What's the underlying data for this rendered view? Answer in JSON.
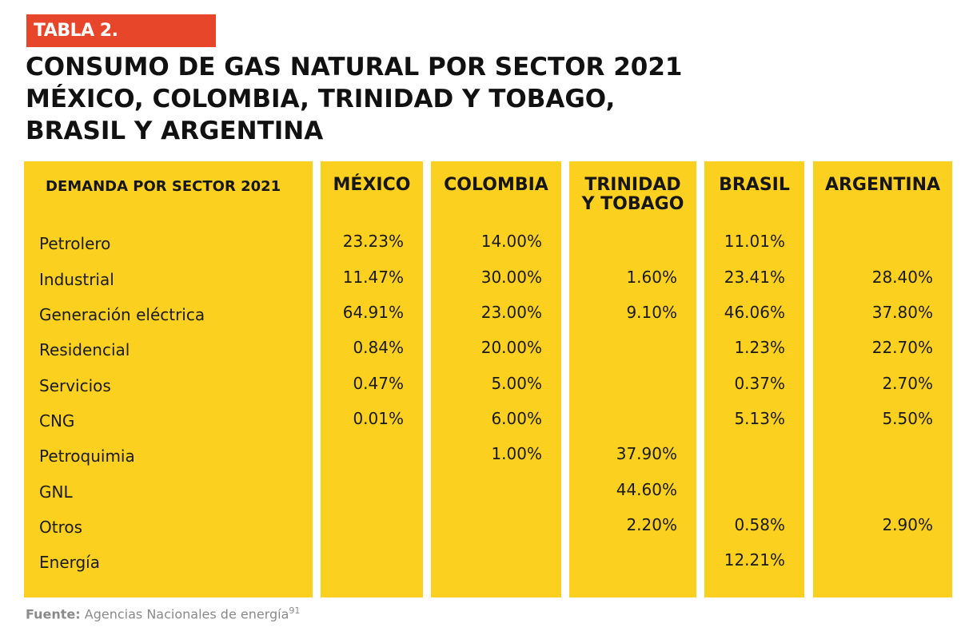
{
  "tag": "TABLA 2.",
  "title_lines": [
    "CONSUMO DE GAS NATURAL POR SECTOR 2021",
    "MÉXICO, COLOMBIA, TRINIDAD Y TOBAGO,",
    "BRASIL Y ARGENTINA"
  ],
  "table": {
    "label_header": "DEMANDA POR SECTOR 2021",
    "columns": [
      {
        "lines": [
          "MÉXICO"
        ]
      },
      {
        "lines": [
          "COLOMBIA"
        ]
      },
      {
        "lines": [
          "TRINIDAD",
          "Y TOBAGO"
        ]
      },
      {
        "lines": [
          "BRASIL"
        ]
      },
      {
        "lines": [
          "ARGENTINA"
        ]
      }
    ],
    "rows": [
      {
        "label": "Petrolero",
        "values": [
          "23.23%",
          "14.00%",
          "",
          "11.01%",
          ""
        ]
      },
      {
        "label": "Industrial",
        "values": [
          "11.47%",
          "30.00%",
          "1.60%",
          "23.41%",
          "28.40%"
        ]
      },
      {
        "label": "Generación eléctrica",
        "values": [
          "64.91%",
          "23.00%",
          "9.10%",
          "46.06%",
          "37.80%"
        ]
      },
      {
        "label": "Residencial",
        "values": [
          "0.84%",
          "20.00%",
          "",
          "1.23%",
          "22.70%"
        ]
      },
      {
        "label": "Servicios",
        "values": [
          "0.47%",
          "5.00%",
          "",
          "0.37%",
          "2.70%"
        ]
      },
      {
        "label": "CNG",
        "values": [
          "0.01%",
          "6.00%",
          "",
          "5.13%",
          "5.50%"
        ]
      },
      {
        "label": "Petroquimia",
        "values": [
          "",
          "1.00%",
          "37.90%",
          "",
          ""
        ]
      },
      {
        "label": "GNL",
        "values": [
          "",
          "",
          "44.60%",
          "",
          ""
        ]
      },
      {
        "label": "Otros",
        "values": [
          "",
          "",
          "2.20%",
          "0.58%",
          "2.90%"
        ]
      },
      {
        "label": "Energía",
        "values": [
          "",
          "",
          "",
          "12.21%",
          ""
        ]
      }
    ]
  },
  "footnote": {
    "label": "Fuente:",
    "text": "Agencias Nacionales de energía",
    "ref": "91"
  },
  "colors": {
    "tag_bg": "#e8462a",
    "column_bg": "#fcd01f",
    "text": "#1a1a1a",
    "footnote": "#8a8a8a"
  }
}
